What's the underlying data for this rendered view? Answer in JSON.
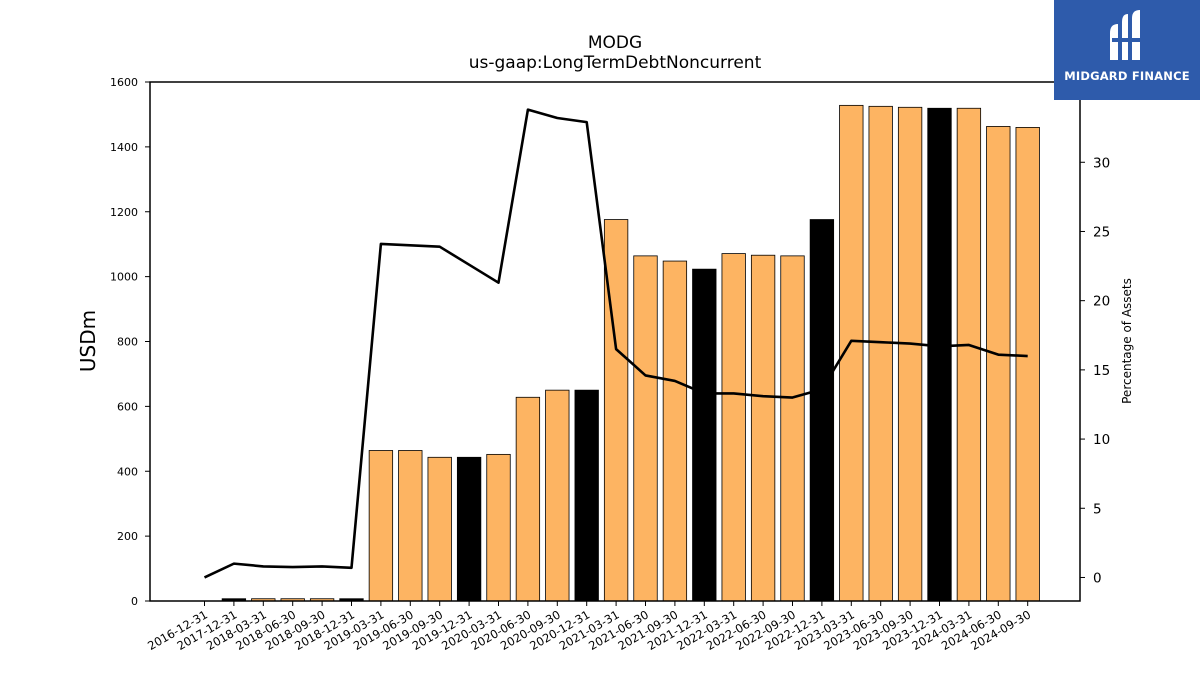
{
  "chart_data": {
    "type": "bar",
    "title": "MODG",
    "subtitle": "us-gaap:LongTermDebtNoncurrent",
    "ylabel": "USDm",
    "y2label": "Percentage of Assets",
    "ylim": [
      0,
      1600
    ],
    "y2lim": [
      -1.7,
      35.8
    ],
    "yticks": [
      0,
      200,
      400,
      600,
      800,
      1000,
      1200,
      1400,
      1600
    ],
    "y2ticks": [
      0,
      5,
      10,
      15,
      20,
      25,
      30
    ],
    "grid": false,
    "categories": [
      "2016-12-31",
      "2017-12-31",
      "2018-03-31",
      "2018-06-30",
      "2018-09-30",
      "2018-12-31",
      "2019-03-31",
      "2019-06-30",
      "2019-09-30",
      "2019-12-31",
      "2020-03-31",
      "2020-06-30",
      "2020-09-30",
      "2020-12-31",
      "2021-03-31",
      "2021-06-30",
      "2021-09-30",
      "2021-12-31",
      "2022-03-31",
      "2022-06-30",
      "2022-09-30",
      "2022-12-31",
      "2023-03-31",
      "2023-06-30",
      "2023-09-30",
      "2023-12-31",
      "2024-03-31",
      "2024-06-30",
      "2024-09-30"
    ],
    "series": [
      {
        "type": "bar",
        "values": [
          0,
          7,
          7,
          7,
          7,
          7,
          464,
          464,
          443,
          443,
          452,
          628,
          650,
          650,
          1176,
          1064,
          1048,
          1023,
          1071,
          1066,
          1064,
          1176,
          1528,
          1525,
          1522,
          1519,
          1519,
          1463,
          1460
        ],
        "highlight": [
          false,
          true,
          false,
          false,
          false,
          true,
          false,
          false,
          false,
          true,
          false,
          false,
          false,
          true,
          false,
          false,
          false,
          true,
          false,
          false,
          false,
          true,
          false,
          false,
          false,
          true,
          false,
          false,
          false
        ],
        "color": "#fdb462",
        "highlight_color": "#000000"
      },
      {
        "type": "line",
        "axis": "right",
        "values": [
          0,
          1.0,
          0.8,
          0.75,
          0.8,
          0.7,
          24.1,
          24.0,
          23.9,
          22.6,
          21.3,
          33.8,
          33.2,
          32.9,
          16.5,
          14.6,
          14.2,
          13.3,
          13.3,
          13.1,
          13.0,
          13.6,
          17.1,
          17.0,
          16.9,
          16.7,
          16.8,
          16.1,
          16.0
        ],
        "color": "#000000"
      }
    ]
  },
  "logo": {
    "name": "MIDGARD FINANCE"
  }
}
